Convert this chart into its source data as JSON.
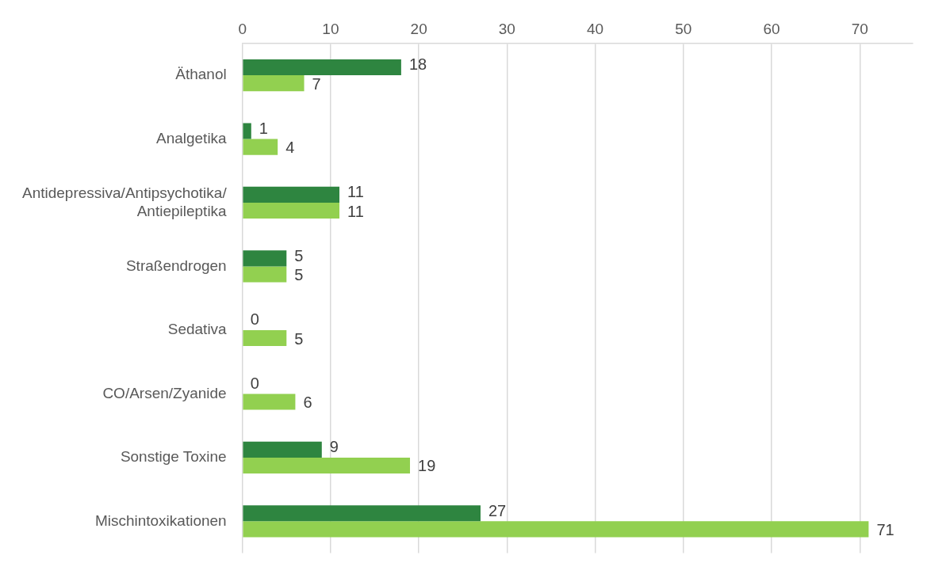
{
  "chart_data": {
    "type": "bar",
    "orientation": "horizontal",
    "categories": [
      "Äthanol",
      "Analgetika",
      "Antidepressiva/Antipsychotika/ Antiepileptika",
      "Straßendrogen",
      "Sedativa",
      "CO/Arsen/Zyanide",
      "Sonstige Toxine",
      "Mischintoxikationen"
    ],
    "series": [
      {
        "color": "#2e8540",
        "values": [
          18,
          1,
          11,
          5,
          0,
          0,
          9,
          27
        ]
      },
      {
        "color": "#92d050",
        "values": [
          7,
          4,
          11,
          5,
          5,
          6,
          19,
          71
        ]
      }
    ],
    "xlim": [
      0,
      76
    ],
    "xticks": [
      0,
      10,
      20,
      30,
      40,
      50,
      60,
      70
    ],
    "grid": "x",
    "legend": false,
    "data_labels": true
  }
}
